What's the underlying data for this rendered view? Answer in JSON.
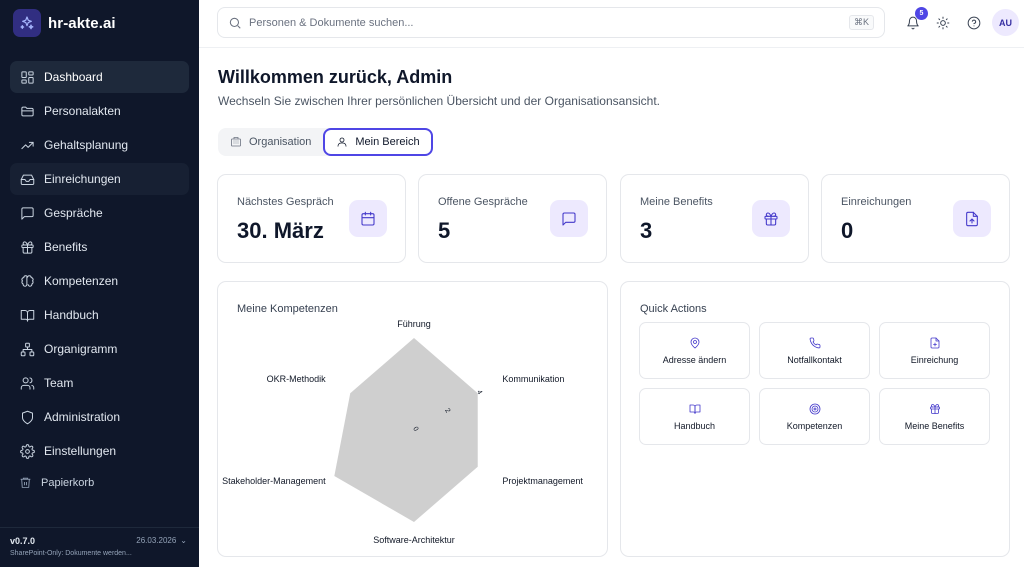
{
  "app": {
    "name": "hr-akte.ai"
  },
  "sidebar": {
    "items": [
      {
        "label": "Dashboard",
        "icon": "layout-grid-icon"
      },
      {
        "label": "Personalakten",
        "icon": "folder-icon"
      },
      {
        "label": "Gehaltsplanung",
        "icon": "trending-up-icon"
      },
      {
        "label": "Einreichungen",
        "icon": "inbox-icon"
      },
      {
        "label": "Gespräche",
        "icon": "message-square-icon"
      },
      {
        "label": "Benefits",
        "icon": "gift-icon"
      },
      {
        "label": "Kompetenzen",
        "icon": "brain-icon"
      },
      {
        "label": "Handbuch",
        "icon": "book-open-icon"
      },
      {
        "label": "Organigramm",
        "icon": "network-icon"
      },
      {
        "label": "Team",
        "icon": "users-icon"
      },
      {
        "label": "Administration",
        "icon": "shield-icon"
      },
      {
        "label": "Einstellungen",
        "icon": "settings-icon"
      }
    ],
    "trash_label": "Papierkorb",
    "version": "v0.7.0",
    "date": "26.03.2026",
    "note": "SharePoint-Only: Dokumente werden..."
  },
  "topbar": {
    "search_placeholder": "Personen & Dokumente suchen...",
    "shortcut": "⌘K",
    "notification_count": "5",
    "avatar_initials": "AU"
  },
  "main": {
    "title": "Willkommen zurück, Admin",
    "subtitle": "Wechseln Sie zwischen Ihrer persönlichen Übersicht und der Organisationsansicht.",
    "toggle": {
      "organisation": "Organisation",
      "mein_bereich": "Mein Bereich",
      "selected": "Mein Bereich"
    },
    "stats": [
      {
        "label": "Nächstes Gespräch",
        "value": "30. März",
        "icon": "calendar-icon"
      },
      {
        "label": "Offene Gespräche",
        "value": "5",
        "icon": "message-square-icon"
      },
      {
        "label": "Meine Benefits",
        "value": "3",
        "icon": "gift-icon"
      },
      {
        "label": "Einreichungen",
        "value": "0",
        "icon": "file-up-icon"
      }
    ],
    "competencies": {
      "title": "Meine Kompetenzen",
      "ring_labels": [
        "0",
        "2",
        "4"
      ],
      "fill_color": "#cfcfcf"
    },
    "quick_actions": {
      "title": "Quick Actions",
      "items": [
        {
          "label": "Adresse ändern",
          "icon": "map-pin-icon"
        },
        {
          "label": "Notfallkontakt",
          "icon": "phone-icon"
        },
        {
          "label": "Einreichung",
          "icon": "file-plus-icon"
        },
        {
          "label": "Handbuch",
          "icon": "book-open-icon"
        },
        {
          "label": "Kompetenzen",
          "icon": "target-icon"
        },
        {
          "label": "Meine Benefits",
          "icon": "gift-icon"
        }
      ]
    }
  },
  "chart_data": {
    "type": "radar",
    "title": "Meine Kompetenzen",
    "categories": [
      "Führung",
      "Kommunikation",
      "Projektmanagement",
      "Software-Architektur",
      "Stakeholder-Management",
      "OKR-Methodik"
    ],
    "rlim": [
      0,
      5
    ],
    "ticks": [
      0,
      2,
      4
    ],
    "series": [
      {
        "values": [
          5,
          4,
          4,
          5,
          5,
          4
        ]
      }
    ],
    "grid": false
  }
}
